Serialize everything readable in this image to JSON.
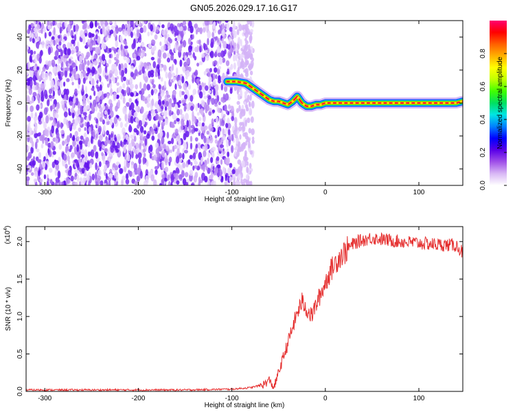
{
  "title": "GN05.2026.029.17.16.G17",
  "chart_data": [
    {
      "type": "heatmap",
      "xlabel": "Height of straight line (km)",
      "ylabel": "Frequency (Hz)",
      "xlim": [
        -320,
        147
      ],
      "ylim": [
        -50,
        50
      ],
      "xticks": [
        -300,
        -200,
        -100,
        0,
        100
      ],
      "yticks": [
        -40,
        -20,
        0,
        20,
        40
      ],
      "colorbar": {
        "label": "Normalized spectral amplitude",
        "range": [
          0,
          1
        ],
        "ticks": [
          "0.0",
          "0.2",
          "0.4",
          "0.6",
          "0.8"
        ],
        "colors": [
          "#ffffff",
          "#d9b8f5",
          "#a050e8",
          "#5a00e8",
          "#0000ff",
          "#0080ff",
          "#00e5e5",
          "#00e060",
          "#40ff00",
          "#c0ff00",
          "#ffff00",
          "#ffb000",
          "#ff6000",
          "#ff0000",
          "#ff0070"
        ]
      },
      "noise_region_x": [
        -320,
        -85
      ],
      "tone_track": {
        "x": [
          -105,
          -95,
          -85,
          -80,
          -75,
          -70,
          -65,
          -60,
          -55,
          -50,
          -45,
          -40,
          -35,
          -30,
          -25,
          -20,
          -15,
          -10,
          -5,
          0,
          10,
          20,
          40,
          60,
          80,
          100,
          120,
          140,
          147
        ],
        "freq": [
          13,
          13,
          12,
          10,
          8,
          6,
          4,
          2,
          1,
          1,
          0,
          -1,
          1,
          4,
          0,
          -2,
          -2,
          -1,
          -1,
          0,
          0,
          0,
          0,
          0,
          0,
          0,
          0,
          0,
          1
        ]
      }
    },
    {
      "type": "line",
      "xlabel": "Height of straight line (km)",
      "ylabel": "SNR (10 * v/v)",
      "yexponent_label": "(x10",
      "yexponent_power": "4",
      "xlim": [
        -320,
        147
      ],
      "ylim": [
        0,
        2.2
      ],
      "xticks": [
        -300,
        -200,
        -100,
        0,
        100
      ],
      "yticks": [
        "0.0",
        "0.5",
        "1.0",
        "1.5",
        "2.0"
      ],
      "color": "#e53030",
      "series": [
        {
          "x": [
            -320,
            -250,
            -150,
            -100,
            -80,
            -70,
            -65,
            -60,
            -55,
            -50,
            -45,
            -40,
            -35,
            -30,
            -25,
            -20,
            -15,
            -10,
            -5,
            0,
            5,
            10,
            15,
            20,
            25,
            30,
            35,
            40,
            50,
            60,
            80,
            100,
            120,
            140,
            147
          ],
          "values": [
            0.02,
            0.02,
            0.02,
            0.03,
            0.05,
            0.08,
            0.1,
            0.15,
            0.05,
            0.25,
            0.45,
            0.65,
            0.85,
            1.05,
            1.2,
            1.1,
            1.0,
            1.15,
            1.3,
            1.45,
            1.6,
            1.7,
            1.8,
            1.85,
            1.92,
            1.97,
            2.0,
            2.02,
            2.05,
            2.03,
            2.0,
            1.98,
            1.96,
            1.95,
            1.85
          ]
        }
      ]
    }
  ]
}
